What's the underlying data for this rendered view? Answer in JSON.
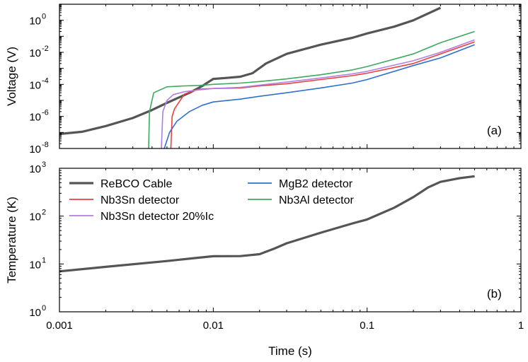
{
  "chart_data": [
    {
      "type": "line",
      "panel_label": "(a)",
      "xscale": "log",
      "yscale": "log",
      "xlim": [
        0.001,
        1
      ],
      "ylim": [
        1e-08,
        10
      ],
      "ylabel": "Voltage (V)",
      "y_ticks": [
        {
          "value": 1e-08,
          "base": "10",
          "exp": "-8"
        },
        {
          "value": 1e-06,
          "base": "10",
          "exp": "-6"
        },
        {
          "value": 0.0001,
          "base": "10",
          "exp": "-4"
        },
        {
          "value": 0.01,
          "base": "10",
          "exp": "-2"
        },
        {
          "value": 1,
          "base": "10",
          "exp": "0"
        }
      ],
      "series": [
        {
          "name": "ReBCO Cable",
          "color": "#555555",
          "points": [
            [
              0.001,
              8e-08
            ],
            [
              0.0014,
              1.1e-07
            ],
            [
              0.002,
              2.5e-07
            ],
            [
              0.003,
              8e-07
            ],
            [
              0.004,
              2.5e-06
            ],
            [
              0.005,
              7e-06
            ],
            [
              0.007,
              3e-05
            ],
            [
              0.0085,
              8e-05
            ],
            [
              0.0095,
              0.00016
            ],
            [
              0.01,
              0.00022
            ],
            [
              0.012,
              0.00025
            ],
            [
              0.015,
              0.0003
            ],
            [
              0.018,
              0.0005
            ],
            [
              0.022,
              0.002
            ],
            [
              0.03,
              0.008
            ],
            [
              0.05,
              0.03
            ],
            [
              0.08,
              0.08
            ],
            [
              0.1,
              0.15
            ],
            [
              0.15,
              0.4
            ],
            [
              0.2,
              1
            ],
            [
              0.3,
              6
            ]
          ]
        },
        {
          "name": "Nb3Sn detector",
          "color": "#e8403a",
          "points": [
            [
              0.0053,
              1e-08
            ],
            [
              0.0054,
              1e-06
            ],
            [
              0.0056,
              3e-06
            ],
            [
              0.006,
              8e-06
            ],
            [
              0.0065,
              2.5e-05
            ],
            [
              0.008,
              5e-05
            ],
            [
              0.01,
              5.5e-05
            ],
            [
              0.015,
              6e-05
            ],
            [
              0.02,
              8e-05
            ],
            [
              0.03,
              0.00011
            ],
            [
              0.05,
              0.0002
            ],
            [
              0.08,
              0.00035
            ],
            [
              0.1,
              0.0005
            ],
            [
              0.2,
              0.002
            ],
            [
              0.3,
              0.008
            ],
            [
              0.5,
              0.045
            ]
          ]
        },
        {
          "name": "Nb3Sn detector 20%Ic",
          "color": "#b07ee0",
          "points": [
            [
              0.0046,
              1e-08
            ],
            [
              0.0047,
              2e-06
            ],
            [
              0.005,
              1e-05
            ],
            [
              0.0055,
              2.3e-05
            ],
            [
              0.0065,
              3.5e-05
            ],
            [
              0.008,
              4.5e-05
            ],
            [
              0.01,
              5.5e-05
            ],
            [
              0.015,
              6.5e-05
            ],
            [
              0.02,
              9e-05
            ],
            [
              0.03,
              0.00014
            ],
            [
              0.05,
              0.00025
            ],
            [
              0.08,
              0.00045
            ],
            [
              0.1,
              0.00065
            ],
            [
              0.2,
              0.003
            ],
            [
              0.3,
              0.01
            ],
            [
              0.5,
              0.06
            ]
          ]
        },
        {
          "name": "MgB2 detector",
          "color": "#2f6fd0",
          "points": [
            [
              0.0048,
              1e-08
            ],
            [
              0.0052,
              1e-07
            ],
            [
              0.0058,
              5e-07
            ],
            [
              0.007,
              2e-06
            ],
            [
              0.0085,
              5e-06
            ],
            [
              0.01,
              8e-06
            ],
            [
              0.015,
              1.2e-05
            ],
            [
              0.02,
              1.8e-05
            ],
            [
              0.03,
              3e-05
            ],
            [
              0.05,
              6e-05
            ],
            [
              0.08,
              0.00012
            ],
            [
              0.1,
              0.0002
            ],
            [
              0.2,
              0.0015
            ],
            [
              0.3,
              0.0045
            ],
            [
              0.5,
              0.03
            ]
          ]
        },
        {
          "name": "Nb3Al detector",
          "color": "#3aaa5e",
          "points": [
            [
              0.0038,
              1e-08
            ],
            [
              0.00385,
              2e-06
            ],
            [
              0.0041,
              3e-05
            ],
            [
              0.005,
              7e-05
            ],
            [
              0.0065,
              8e-05
            ],
            [
              0.008,
              8.5e-05
            ],
            [
              0.01,
              0.0001
            ],
            [
              0.015,
              0.00012
            ],
            [
              0.02,
              0.00015
            ],
            [
              0.03,
              0.00022
            ],
            [
              0.05,
              0.0004
            ],
            [
              0.08,
              0.0008
            ],
            [
              0.1,
              0.0013
            ],
            [
              0.2,
              0.008
            ],
            [
              0.3,
              0.04
            ],
            [
              0.5,
              0.2
            ]
          ]
        }
      ]
    },
    {
      "type": "line",
      "panel_label": "(b)",
      "xscale": "log",
      "yscale": "log",
      "xlim": [
        0.001,
        1
      ],
      "ylim": [
        1,
        1000
      ],
      "xlabel": "Time (s)",
      "ylabel": "Temperature (K)",
      "x_tick_labels": [
        {
          "value": 0.001,
          "label": "0.001"
        },
        {
          "value": 0.01,
          "label": "0.01"
        },
        {
          "value": 0.1,
          "label": "0.1"
        },
        {
          "value": 1,
          "label": "1"
        }
      ],
      "y_ticks": [
        {
          "value": 1,
          "base": "10",
          "exp": "0"
        },
        {
          "value": 10,
          "base": "10",
          "exp": "1"
        },
        {
          "value": 100,
          "base": "10",
          "exp": "2"
        },
        {
          "value": 1000,
          "base": "10",
          "exp": "3"
        }
      ],
      "series": [
        {
          "name": "ReBCO Cable",
          "color": "#555555",
          "points": [
            [
              0.001,
              7
            ],
            [
              0.002,
              8.7
            ],
            [
              0.005,
              11.5
            ],
            [
              0.008,
              13.5
            ],
            [
              0.01,
              14.5
            ],
            [
              0.015,
              14.6
            ],
            [
              0.02,
              16
            ],
            [
              0.025,
              21
            ],
            [
              0.03,
              27
            ],
            [
              0.05,
              45
            ],
            [
              0.08,
              70
            ],
            [
              0.1,
              85
            ],
            [
              0.15,
              150
            ],
            [
              0.2,
              250
            ],
            [
              0.25,
              400
            ],
            [
              0.3,
              520
            ],
            [
              0.4,
              620
            ],
            [
              0.5,
              680
            ]
          ]
        }
      ],
      "legend": {
        "placement": "top-left, two columns",
        "entries": [
          {
            "label": "ReBCO Cable",
            "color": "#555555"
          },
          {
            "label": "MgB2 detector",
            "color": "#2f6fd0"
          },
          {
            "label": "Nb3Sn detector",
            "color": "#e8403a"
          },
          {
            "label": "Nb3Al detector",
            "color": "#3aaa5e"
          },
          {
            "label": "Nb3Sn detector 20%Ic",
            "color": "#b07ee0"
          }
        ]
      }
    }
  ]
}
